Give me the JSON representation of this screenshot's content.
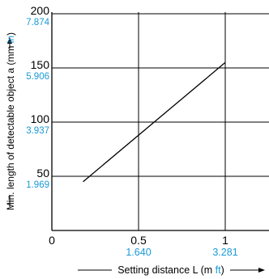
{
  "chart_data": {
    "type": "line",
    "title": "",
    "xlabel": {
      "prefix": "Setting distance L (m ",
      "alt_unit": "ft",
      "suffix": ")"
    },
    "ylabel": {
      "prefix": "Min. length of detectable object a (mm ",
      "alt_unit": "in",
      "suffix": ")"
    },
    "xlim": [
      0,
      1.2
    ],
    "ylim": [
      0,
      200
    ],
    "x_ticks": [
      {
        "value": 0,
        "label": "0",
        "alt_label": ""
      },
      {
        "value": 0.5,
        "label": "0.5",
        "alt_label": "1.640"
      },
      {
        "value": 1,
        "label": "1",
        "alt_label": "3.281"
      }
    ],
    "y_ticks": [
      {
        "value": 50,
        "label": "50",
        "alt_label": "1.969"
      },
      {
        "value": 100,
        "label": "100",
        "alt_label": "3.937"
      },
      {
        "value": 150,
        "label": "150",
        "alt_label": "5.906"
      },
      {
        "value": 200,
        "label": "200",
        "alt_label": "7.874"
      }
    ],
    "grid": true,
    "series": [
      {
        "points": [
          {
            "x": 0.18,
            "y": 45
          },
          {
            "x": 1.0,
            "y": 155
          }
        ]
      }
    ],
    "colors": {
      "line": "#000000",
      "alt_unit": "#1a9ad6"
    }
  }
}
